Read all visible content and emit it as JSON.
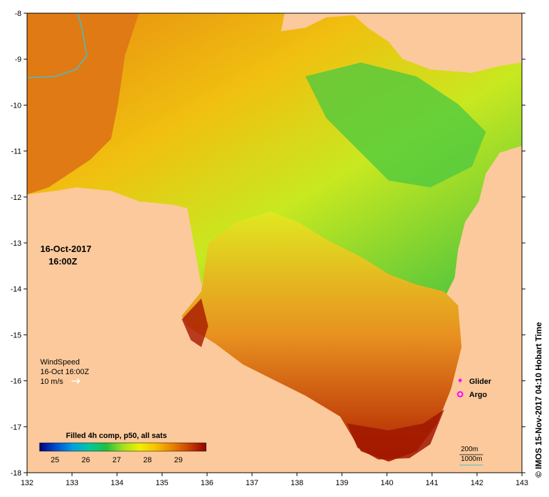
{
  "map": {
    "lon_ticks": [
      "132",
      "133",
      "134",
      "135",
      "136",
      "137",
      "138",
      "139",
      "140",
      "141",
      "142",
      "143"
    ],
    "lat_ticks": [
      "-8",
      "-9",
      "-10",
      "-11",
      "-12",
      "-13",
      "-14",
      "-15",
      "-16",
      "-17",
      "-18"
    ],
    "lon_range": [
      132,
      143
    ],
    "lat_range": [
      -18,
      -8
    ],
    "land_color": "#fbc99b",
    "date": "16-Oct-2017",
    "time": "16:00Z"
  },
  "wind": {
    "title": "WindSpeed",
    "datetime": "16-Oct 16:00Z",
    "scale_label": "10 m/s"
  },
  "legend": {
    "glider": "Glider",
    "argo": "Argo",
    "glider_color": "#ff00ff",
    "argo_color": "#ff00ff"
  },
  "colorbar": {
    "title": "Filled 4h comp, p50, all sats",
    "ticks": [
      "25",
      "26",
      "27",
      "28",
      "29"
    ],
    "colors": [
      "#000080",
      "#0050d0",
      "#00a0e0",
      "#00c8a0",
      "#20c040",
      "#a0e020",
      "#f0f000",
      "#f8c000",
      "#e88000",
      "#c84000",
      "#900000"
    ]
  },
  "depth": {
    "contour_200": "200m",
    "contour_1000": "1000m"
  },
  "credit": "© IMOS 15-Nov-2017 04:10 Hobart Time"
}
